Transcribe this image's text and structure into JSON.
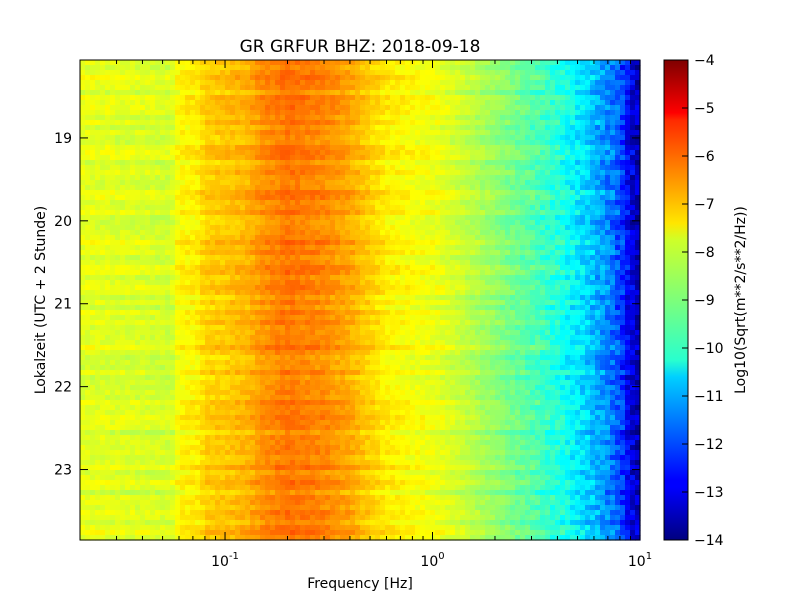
{
  "chart_data": {
    "type": "heatmap",
    "title": "GR GRFUR BHZ: 2018-09-18",
    "xlabel": "Frequency [Hz]",
    "ylabel": "Lokalzeit (UTC + 2 Stunde)",
    "x_scale": "log",
    "xlim": [
      0.02,
      10
    ],
    "x_ticks": [
      {
        "value": 0.1,
        "base": "10",
        "exp": "-1"
      },
      {
        "value": 1,
        "base": "10",
        "exp": "0"
      },
      {
        "value": 10,
        "base": "10",
        "exp": "1"
      }
    ],
    "ylim": [
      18.06,
      23.85
    ],
    "y_inverted": true,
    "y_ticks": [
      19,
      20,
      21,
      22,
      23
    ],
    "y_tick_labels": [
      "19",
      "20",
      "21",
      "22",
      "23"
    ],
    "colorbar": {
      "label": "Log10(Sqrt(m**2/s**2/Hz))",
      "range": [
        -14,
        -4
      ],
      "ticks": [
        -4,
        -5,
        -6,
        -7,
        -8,
        -9,
        -10,
        -11,
        -12,
        -13,
        -14
      ],
      "tick_labels": [
        "−4",
        "−5",
        "−6",
        "−7",
        "−8",
        "−9",
        "−10",
        "−11",
        "−12",
        "−13",
        "−14"
      ],
      "colormap": "jet"
    },
    "spectrum_profile": {
      "frequency_hz": [
        0.02,
        0.04,
        0.055,
        0.06,
        0.075,
        0.08,
        0.1,
        0.13,
        0.15,
        0.2,
        0.3,
        0.4,
        0.5,
        0.6,
        0.8,
        1.0,
        1.2,
        1.5,
        2.0,
        3.0,
        4.0,
        5.0,
        6.0,
        7.0,
        8.0,
        9.0,
        10.0
      ],
      "log10_amplitude": [
        -8.0,
        -8.1,
        -8.2,
        -7.7,
        -7.6,
        -7.3,
        -7.2,
        -7.0,
        -6.7,
        -6.4,
        -6.6,
        -6.9,
        -7.3,
        -7.6,
        -7.8,
        -7.9,
        -8.1,
        -8.4,
        -8.8,
        -9.4,
        -9.9,
        -10.4,
        -10.9,
        -11.4,
        -12.0,
        -13.0,
        -13.6
      ]
    }
  }
}
